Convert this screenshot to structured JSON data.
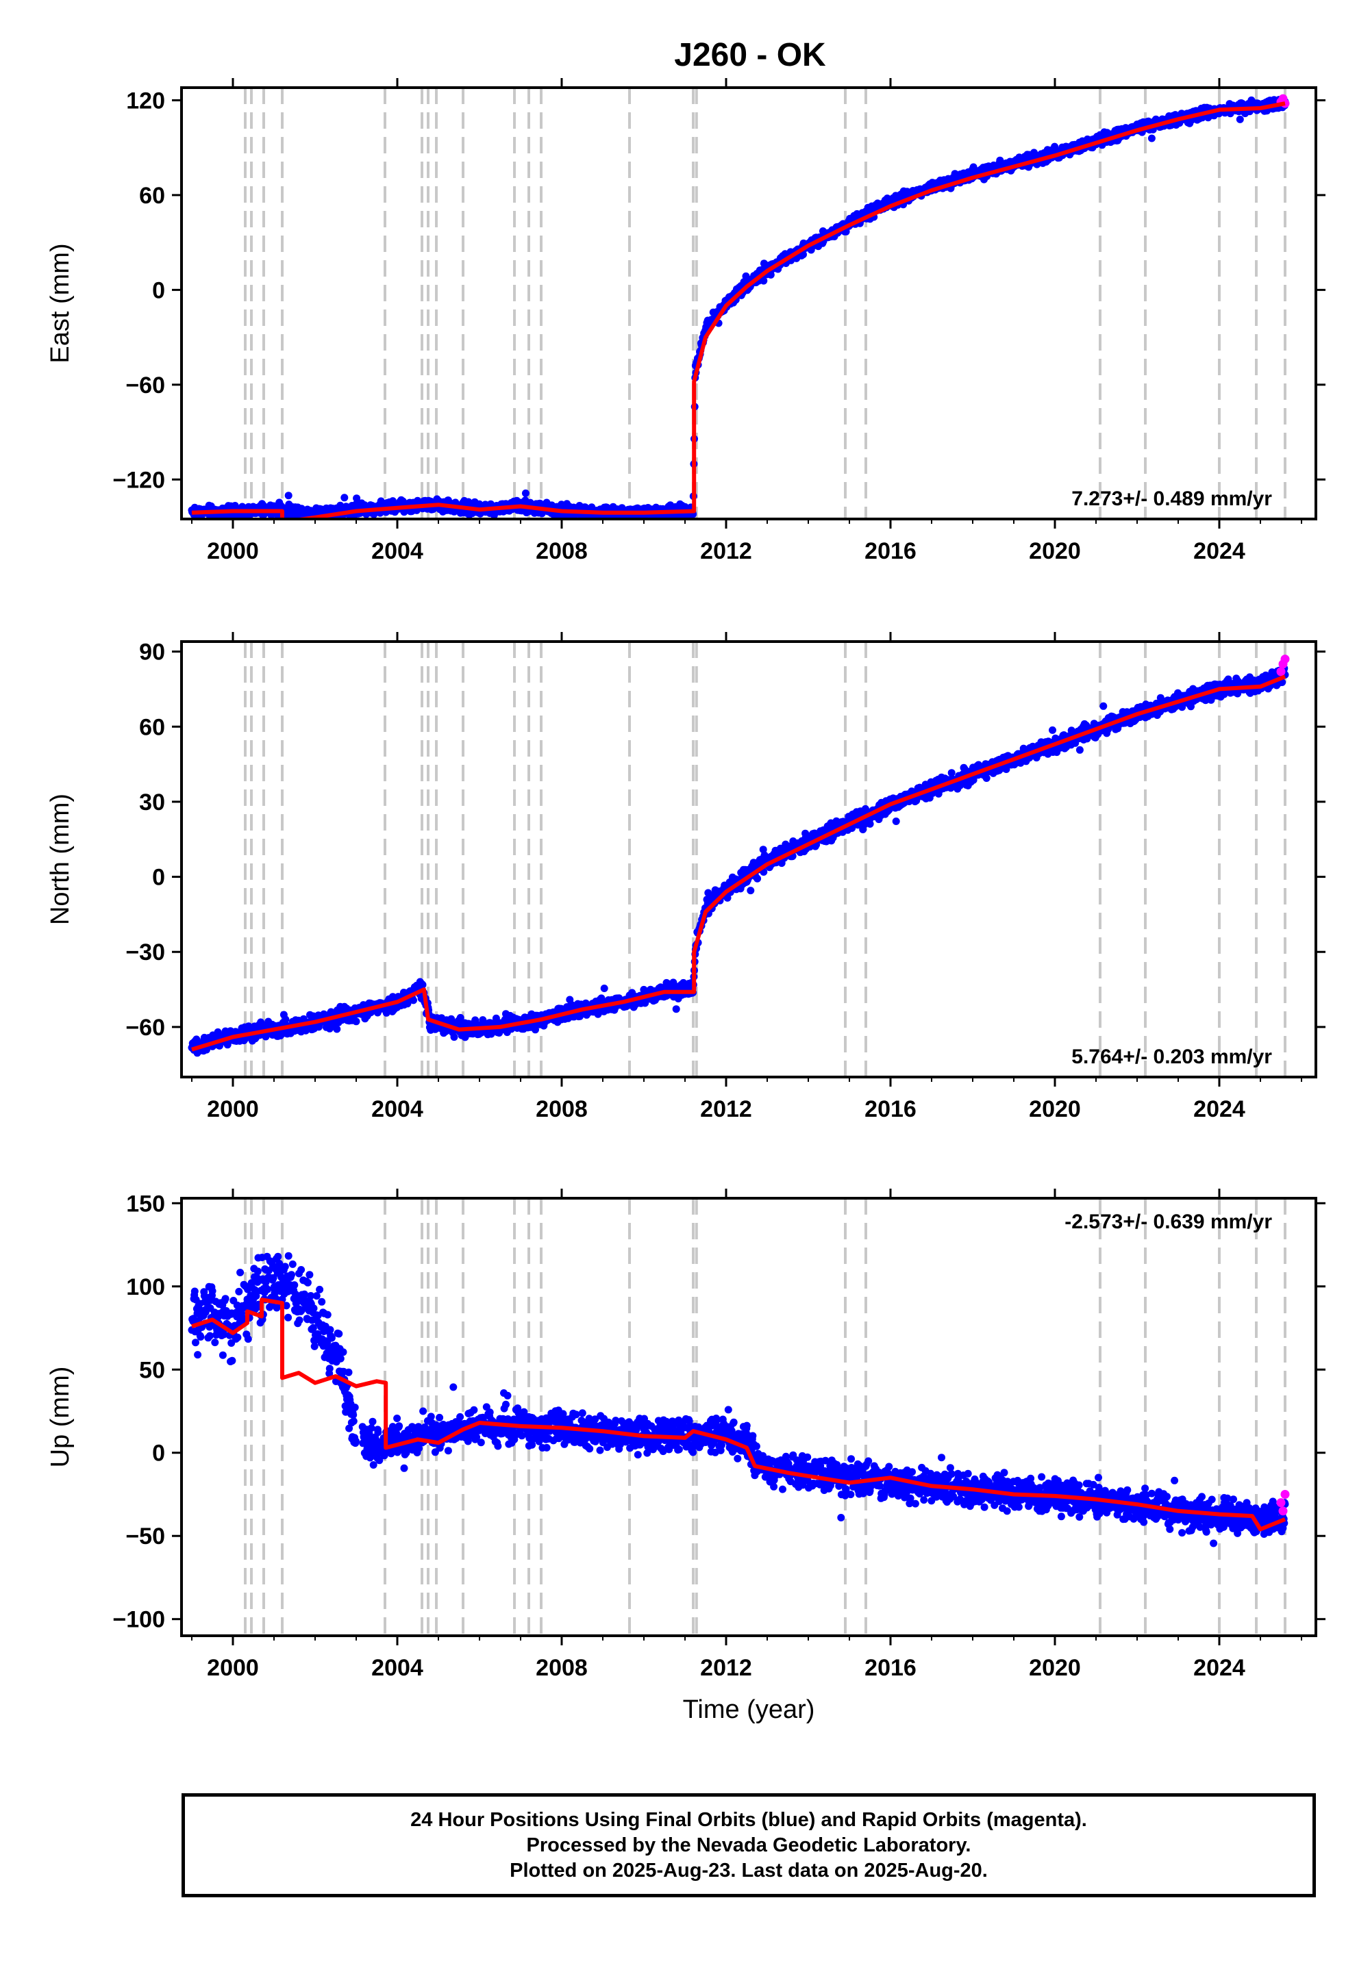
{
  "title": "J260 - OK",
  "chart_data": [
    {
      "type": "scatter",
      "panel": "east",
      "ylabel": "East (mm)",
      "xlabel": "",
      "xlim": [
        1998.75,
        2026.35
      ],
      "ylim": [
        -145,
        128
      ],
      "x_ticks": [
        2000,
        2004,
        2008,
        2012,
        2016,
        2020,
        2024
      ],
      "y_ticks": [
        -120,
        -60,
        0,
        60,
        120
      ],
      "rate_label": "7.273+/- 0.489 mm/yr",
      "rate_label_position": "bottom-right",
      "series": [
        {
          "name": "Final Orbits",
          "color": "#0000ff",
          "kind": "points",
          "x": [
            1999.0,
            2000.0,
            2001.0,
            2002.0,
            2003.0,
            2004.0,
            2005.0,
            2006.0,
            2007.0,
            2008.0,
            2009.0,
            2010.0,
            2011.0,
            2011.2,
            2011.25,
            2011.5,
            2012.0,
            2012.5,
            2013.0,
            2014.0,
            2015.0,
            2016.0,
            2017.0,
            2018.0,
            2019.0,
            2020.0,
            2021.0,
            2022.0,
            2023.0,
            2024.0,
            2025.0,
            2025.6
          ],
          "y": [
            -140,
            -141,
            -139,
            -141,
            -139,
            -137,
            -136,
            -139,
            -137,
            -140,
            -141,
            -141,
            -140,
            -140,
            -50,
            -25,
            -8,
            3,
            12,
            28,
            42,
            55,
            65,
            73,
            80,
            86,
            94,
            102,
            108,
            114,
            116,
            118
          ]
        },
        {
          "name": "Rapid Orbits",
          "color": "#ff00ff",
          "kind": "points",
          "x": [
            2025.5,
            2025.55,
            2025.6
          ],
          "y": [
            119,
            121,
            118
          ]
        },
        {
          "name": "Model",
          "color": "#ff0000",
          "kind": "line",
          "x": [
            1999.0,
            2000.0,
            2001.2,
            2001.2,
            2002.0,
            2003.0,
            2004.0,
            2005.0,
            2006.0,
            2007.0,
            2008.0,
            2009.0,
            2010.0,
            2011.22,
            2011.22,
            2011.5,
            2012.0,
            2012.5,
            2013.0,
            2014.0,
            2015.0,
            2016.0,
            2017.0,
            2018.0,
            2019.0,
            2020.0,
            2021.0,
            2022.0,
            2023.0,
            2024.0,
            2025.0,
            2025.6
          ],
          "y": [
            -141,
            -140,
            -140,
            -147,
            -144,
            -140,
            -138,
            -136,
            -139,
            -137,
            -140,
            -141,
            -141,
            -140,
            -58,
            -30,
            -10,
            2,
            12,
            28,
            41,
            53,
            63,
            71,
            78,
            85,
            93,
            101,
            108,
            114,
            115,
            118
          ]
        }
      ]
    },
    {
      "type": "scatter",
      "panel": "north",
      "ylabel": "North (mm)",
      "xlabel": "",
      "xlim": [
        1998.75,
        2026.35
      ],
      "ylim": [
        -80,
        94
      ],
      "x_ticks": [
        2000,
        2004,
        2008,
        2012,
        2016,
        2020,
        2024
      ],
      "y_ticks": [
        -60,
        -30,
        0,
        30,
        60,
        90
      ],
      "rate_label": "5.764+/- 0.203 mm/yr",
      "rate_label_position": "bottom-right",
      "series": [
        {
          "name": "Final Orbits",
          "color": "#0000ff",
          "kind": "points",
          "x": [
            1999.0,
            2000.0,
            2001.0,
            2002.0,
            2003.0,
            2004.0,
            2004.6,
            2004.8,
            2005.5,
            2006.5,
            2007.5,
            2008.5,
            2009.5,
            2010.5,
            2011.2,
            2011.25,
            2011.5,
            2012.0,
            2013.0,
            2014.0,
            2015.0,
            2016.0,
            2017.0,
            2018.0,
            2019.0,
            2020.0,
            2021.0,
            2022.0,
            2023.0,
            2024.0,
            2025.0,
            2025.6
          ],
          "y": [
            -68,
            -64,
            -61,
            -58,
            -54,
            -50,
            -45,
            -58,
            -61,
            -60,
            -57,
            -53,
            -50,
            -46,
            -45,
            -28,
            -12,
            -5,
            6,
            14,
            21,
            29,
            35,
            41,
            47,
            53,
            59,
            65,
            70,
            75,
            77,
            81
          ]
        },
        {
          "name": "Rapid Orbits",
          "color": "#ff00ff",
          "kind": "points",
          "x": [
            2025.5,
            2025.55,
            2025.6
          ],
          "y": [
            82,
            85,
            87
          ]
        },
        {
          "name": "Model",
          "color": "#ff0000",
          "kind": "line",
          "x": [
            1999.0,
            2000.0,
            2001.0,
            2002.0,
            2003.0,
            2004.0,
            2004.65,
            2004.75,
            2005.5,
            2006.5,
            2007.5,
            2008.5,
            2009.5,
            2010.5,
            2011.22,
            2011.22,
            2011.5,
            2012.0,
            2013.0,
            2014.0,
            2015.0,
            2016.0,
            2017.0,
            2018.0,
            2019.0,
            2020.0,
            2021.0,
            2022.0,
            2023.0,
            2024.0,
            2025.0,
            2025.6
          ],
          "y": [
            -69,
            -64,
            -61,
            -58,
            -54,
            -50,
            -45,
            -57,
            -61,
            -60,
            -57,
            -53,
            -50,
            -46,
            -46,
            -30,
            -14,
            -6,
            5,
            13,
            21,
            29,
            35,
            41,
            47,
            53,
            59,
            65,
            70,
            75,
            76,
            80
          ]
        }
      ]
    },
    {
      "type": "scatter",
      "panel": "up",
      "ylabel": "Up (mm)",
      "xlabel": "Time (year)",
      "xlim": [
        1998.75,
        2026.35
      ],
      "ylim": [
        -110,
        153
      ],
      "x_ticks": [
        2000,
        2004,
        2008,
        2012,
        2016,
        2020,
        2024
      ],
      "y_ticks": [
        -100,
        -50,
        0,
        50,
        100,
        150
      ],
      "rate_label": "-2.573+/- 0.639 mm/yr",
      "rate_label_position": "top-right",
      "series": [
        {
          "name": "Final Orbits",
          "color": "#0000ff",
          "kind": "points",
          "x": [
            1999.0,
            1999.5,
            2000.0,
            2000.5,
            2001.0,
            2001.5,
            2002.0,
            2002.5,
            2003.0,
            2003.5,
            2004.0,
            2005.0,
            2006.0,
            2007.0,
            2008.0,
            2009.0,
            2010.0,
            2011.0,
            2012.0,
            2012.5,
            2013.0,
            2014.0,
            2015.0,
            2016.0,
            2017.0,
            2018.0,
            2019.0,
            2020.0,
            2021.0,
            2022.0,
            2023.0,
            2024.0,
            2025.0,
            2025.6
          ],
          "y": [
            80,
            85,
            75,
            95,
            105,
            100,
            80,
            65,
            10,
            5,
            8,
            12,
            15,
            16,
            14,
            12,
            10,
            12,
            10,
            5,
            -10,
            -12,
            -15,
            -18,
            -20,
            -23,
            -24,
            -26,
            -28,
            -32,
            -35,
            -37,
            -40,
            -38
          ]
        },
        {
          "name": "Rapid Orbits",
          "color": "#ff00ff",
          "kind": "points",
          "x": [
            2025.5,
            2025.55,
            2025.6
          ],
          "y": [
            -30,
            -35,
            -25
          ]
        },
        {
          "name": "Model",
          "color": "#ff0000",
          "kind": "line",
          "x": [
            1999.0,
            1999.5,
            2000.0,
            2000.35,
            2000.35,
            2000.7,
            2000.7,
            2001.2,
            2001.2,
            2001.6,
            2002.0,
            2002.5,
            2003.0,
            2003.5,
            2003.72,
            2003.72,
            2004.5,
            2005.0,
            2005.6,
            2006.0,
            2007.0,
            2008.0,
            2009.0,
            2010.0,
            2011.0,
            2011.2,
            2012.0,
            2012.5,
            2012.7,
            2013.5,
            2014.0,
            2015.0,
            2016.0,
            2017.0,
            2018.0,
            2019.0,
            2020.0,
            2021.0,
            2022.0,
            2023.0,
            2024.0,
            2024.8,
            2025.0,
            2025.6
          ],
          "y": [
            76,
            80,
            72,
            78,
            85,
            82,
            92,
            90,
            45,
            48,
            42,
            46,
            40,
            43,
            42,
            3,
            8,
            6,
            14,
            18,
            16,
            15,
            13,
            10,
            9,
            13,
            8,
            3,
            -8,
            -12,
            -14,
            -18,
            -15,
            -20,
            -22,
            -25,
            -26,
            -28,
            -31,
            -35,
            -37,
            -38,
            -46,
            -40
          ]
        }
      ]
    }
  ],
  "equipment_change_years": [
    2000.3,
    2000.45,
    2000.75,
    2001.2,
    2003.7,
    2004.6,
    2004.75,
    2004.95,
    2005.6,
    2006.85,
    2007.2,
    2007.5,
    2009.65,
    2011.2,
    2011.28,
    2014.9,
    2015.4,
    2021.1,
    2022.2,
    2024.0,
    2024.9,
    2025.6
  ],
  "footer": {
    "line1": "24 Hour Positions Using Final Orbits (blue) and Rapid Orbits (magenta).",
    "line2": "Processed by the Nevada Geodetic Laboratory.",
    "line3": "Plotted on 2025-Aug-23. Last data on 2025-Aug-20."
  },
  "colors": {
    "final": "#0000ff",
    "rapid": "#ff00ff",
    "model": "#ff0000",
    "event_lines": "#c8c8c8"
  }
}
